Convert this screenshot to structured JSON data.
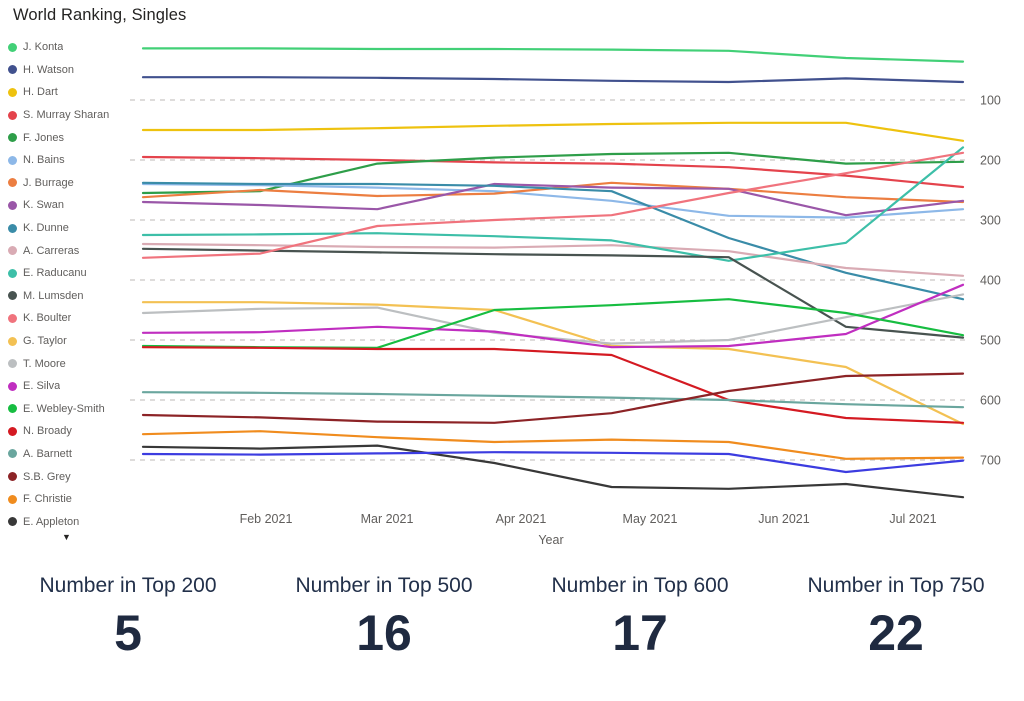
{
  "chart": {
    "legend_scroll_icon": "▼"
  },
  "chart_data": {
    "type": "line",
    "title": "World Ranking, Singles",
    "x_axis_title": "Year",
    "x_tick_labels": [
      "Feb 2021",
      "Mar 2021",
      "Apr 2021",
      "May 2021",
      "Jun 2021",
      "Jul 2021"
    ],
    "x_sample_points": [
      "Jan 2021",
      "Feb 2021",
      "Mar 2021",
      "Mid Apr 2021",
      "Mid May 2021",
      "Early Jun 2021",
      "Late Jun 2021",
      "Jul 2021"
    ],
    "y_axis": {
      "label_side": "right",
      "inverted": true,
      "ticks": [
        100,
        200,
        300,
        400,
        500,
        600,
        700
      ],
      "range": [
        1,
        775
      ],
      "gridlines": "dashed"
    },
    "legend_position": "left",
    "series": [
      {
        "name": "J. Konta",
        "color": "#42d077",
        "legend_visible": true,
        "ranks": [
          14,
          14,
          15,
          15,
          16,
          18,
          30,
          36
        ]
      },
      {
        "name": "H. Watson",
        "color": "#41518e",
        "legend_visible": true,
        "ranks": [
          62,
          62,
          63,
          65,
          68,
          70,
          64,
          70
        ]
      },
      {
        "name": "H. Dart",
        "color": "#eec20f",
        "legend_visible": true,
        "ranks": [
          150,
          150,
          147,
          143,
          140,
          138,
          138,
          168
        ]
      },
      {
        "name": "S. Murray Sharan",
        "color": "#e4434c",
        "legend_visible": true,
        "ranks": [
          195,
          197,
          200,
          204,
          206,
          212,
          226,
          245
        ]
      },
      {
        "name": "F. Jones",
        "color": "#2e9e49",
        "legend_visible": true,
        "ranks": [
          255,
          252,
          206,
          196,
          190,
          188,
          206,
          203
        ]
      },
      {
        "name": "N. Bains",
        "color": "#8db8e8",
        "legend_visible": true,
        "ranks": [
          240,
          242,
          246,
          252,
          268,
          293,
          296,
          282
        ]
      },
      {
        "name": "J. Burrage",
        "color": "#ec7e41",
        "legend_visible": true,
        "ranks": [
          262,
          250,
          260,
          256,
          238,
          248,
          262,
          270
        ]
      },
      {
        "name": "K. Swan",
        "color": "#9a57a8",
        "legend_visible": true,
        "ranks": [
          270,
          275,
          282,
          240,
          246,
          248,
          292,
          268
        ]
      },
      {
        "name": "K. Dunne",
        "color": "#3a8ca8",
        "legend_visible": true,
        "ranks": [
          238,
          240,
          240,
          243,
          252,
          330,
          388,
          432
        ]
      },
      {
        "name": "A. Carreras",
        "color": "#d9abb4",
        "legend_visible": true,
        "ranks": [
          340,
          342,
          345,
          346,
          342,
          352,
          380,
          393
        ]
      },
      {
        "name": "E. Raducanu",
        "color": "#3dbfa8",
        "legend_visible": true,
        "ranks": [
          325,
          324,
          322,
          327,
          334,
          368,
          338,
          179
        ]
      },
      {
        "name": "M. Lumsden",
        "color": "#485350",
        "legend_visible": true,
        "ranks": [
          348,
          351,
          354,
          357,
          359,
          362,
          478,
          496
        ]
      },
      {
        "name": "K. Boulter",
        "color": "#f0737d",
        "legend_visible": true,
        "ranks": [
          363,
          356,
          310,
          300,
          292,
          255,
          222,
          188
        ]
      },
      {
        "name": "G. Taylor",
        "color": "#f3c153",
        "legend_visible": true,
        "ranks": [
          437,
          437,
          441,
          450,
          510,
          515,
          545,
          640
        ]
      },
      {
        "name": "T. Moore",
        "color": "#bcbfc1",
        "legend_visible": true,
        "ranks": [
          455,
          448,
          446,
          488,
          506,
          500,
          462,
          424
        ]
      },
      {
        "name": "E. Silva",
        "color": "#c02ec0",
        "legend_visible": true,
        "ranks": [
          488,
          487,
          478,
          486,
          512,
          510,
          490,
          408
        ]
      },
      {
        "name": "E. Webley-Smith",
        "color": "#17bd41",
        "legend_visible": true,
        "ranks": [
          510,
          512,
          513,
          450,
          442,
          432,
          455,
          492
        ]
      },
      {
        "name": "N. Broady",
        "color": "#d41a22",
        "legend_visible": true,
        "ranks": [
          512,
          513,
          515,
          515,
          525,
          600,
          630,
          638
        ]
      },
      {
        "name": "A. Barnett",
        "color": "#6aa69e",
        "legend_visible": true,
        "ranks": [
          587,
          588,
          590,
          593,
          596,
          600,
          607,
          612
        ]
      },
      {
        "name": "S.B. Grey",
        "color": "#8c2326",
        "legend_visible": true,
        "ranks": [
          625,
          629,
          636,
          638,
          622,
          585,
          560,
          556
        ]
      },
      {
        "name": "F. Christie",
        "color": "#f08c1e",
        "legend_visible": true,
        "ranks": [
          657,
          652,
          662,
          670,
          666,
          670,
          698,
          696
        ]
      },
      {
        "name": "E. Appleton",
        "color": "#383838",
        "legend_visible": true,
        "ranks": [
          678,
          681,
          676,
          705,
          745,
          748,
          740,
          762
        ]
      },
      {
        "name": "",
        "color": "#3c3ce0",
        "legend_visible": false,
        "ranks": [
          690,
          691,
          689,
          687,
          688,
          690,
          720,
          701
        ]
      }
    ]
  },
  "kpi_cards": [
    {
      "label": "Number in Top 200",
      "value": "5"
    },
    {
      "label": "Number in Top 500",
      "value": "16"
    },
    {
      "label": "Number in Top 600",
      "value": "17"
    },
    {
      "label": "Number in Top 750",
      "value": "22"
    }
  ]
}
